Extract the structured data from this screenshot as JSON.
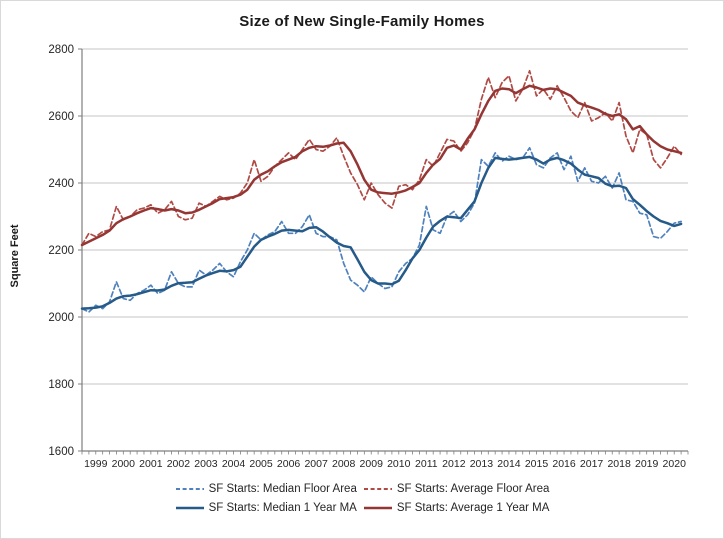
{
  "page": {
    "title": "Size of New Single-Family Homes"
  },
  "chart_data": {
    "type": "line",
    "title": "Size of New Single-Family Homes",
    "xlabel": "",
    "ylabel": "Square Feet",
    "ylim": [
      1600,
      2800
    ],
    "yticks": [
      1600,
      1800,
      2000,
      2200,
      2400,
      2600,
      2800
    ],
    "categories": [
      "1999",
      "2000",
      "2001",
      "2002",
      "2003",
      "2004",
      "2005",
      "2006",
      "2007",
      "2008",
      "2009",
      "2010",
      "2011",
      "2012",
      "2013",
      "2014",
      "2015",
      "2016",
      "2017",
      "2018",
      "2019",
      "2020"
    ],
    "x_unit": "quarter",
    "points_per_year": 4,
    "x_start_year": 1999,
    "grid": "horizontal",
    "legend_position": "bottom",
    "axis_color": "#7f7f7f",
    "grid_color": "#c6c6c6",
    "tick_label_color": "#262626",
    "series": [
      {
        "name": "SF Starts: Median Floor Area",
        "color": "#4f81bd",
        "style": "dashed",
        "width": 1.7,
        "values": [
          2025,
          2015,
          2035,
          2025,
          2045,
          2105,
          2055,
          2050,
          2070,
          2080,
          2095,
          2070,
          2080,
          2135,
          2100,
          2090,
          2090,
          2140,
          2125,
          2140,
          2160,
          2135,
          2120,
          2165,
          2200,
          2250,
          2230,
          2245,
          2255,
          2285,
          2250,
          2250,
          2270,
          2305,
          2250,
          2240,
          2240,
          2230,
          2160,
          2110,
          2095,
          2075,
          2120,
          2100,
          2085,
          2090,
          2135,
          2160,
          2175,
          2215,
          2330,
          2260,
          2250,
          2300,
          2315,
          2285,
          2305,
          2340,
          2470,
          2450,
          2490,
          2465,
          2480,
          2470,
          2475,
          2505,
          2455,
          2445,
          2475,
          2490,
          2440,
          2480,
          2405,
          2445,
          2405,
          2400,
          2420,
          2385,
          2430,
          2350,
          2345,
          2310,
          2305,
          2240,
          2235,
          2255,
          2280,
          2285
        ]
      },
      {
        "name": "SF Starts: Average Floor Area",
        "color": "#b04a45",
        "style": "dashed",
        "width": 1.7,
        "values": [
          2215,
          2250,
          2240,
          2255,
          2260,
          2330,
          2290,
          2300,
          2320,
          2325,
          2335,
          2310,
          2320,
          2345,
          2300,
          2290,
          2295,
          2340,
          2330,
          2345,
          2360,
          2350,
          2355,
          2370,
          2400,
          2470,
          2405,
          2420,
          2450,
          2470,
          2490,
          2470,
          2500,
          2530,
          2500,
          2495,
          2510,
          2535,
          2480,
          2430,
          2395,
          2350,
          2400,
          2365,
          2340,
          2325,
          2390,
          2395,
          2380,
          2410,
          2470,
          2450,
          2490,
          2530,
          2525,
          2495,
          2520,
          2560,
          2650,
          2715,
          2655,
          2700,
          2720,
          2645,
          2680,
          2735,
          2660,
          2680,
          2650,
          2690,
          2655,
          2615,
          2595,
          2640,
          2585,
          2595,
          2610,
          2585,
          2640,
          2540,
          2490,
          2560,
          2545,
          2470,
          2445,
          2475,
          2510,
          2485
        ]
      },
      {
        "name": "SF Starts: Median 1 Year MA",
        "color": "#265a88",
        "style": "solid",
        "width": 2.5,
        "values": [
          2025,
          2026,
          2028,
          2032,
          2042,
          2055,
          2062,
          2064,
          2068,
          2074,
          2080,
          2079,
          2082,
          2093,
          2101,
          2102,
          2104,
          2114,
          2124,
          2131,
          2138,
          2136,
          2140,
          2150,
          2180,
          2210,
          2230,
          2240,
          2248,
          2258,
          2260,
          2258,
          2256,
          2266,
          2268,
          2255,
          2238,
          2222,
          2212,
          2208,
          2172,
          2135,
          2110,
          2100,
          2100,
          2098,
          2108,
          2140,
          2175,
          2200,
          2237,
          2270,
          2287,
          2300,
          2298,
          2295,
          2320,
          2345,
          2400,
          2445,
          2475,
          2472,
          2470,
          2472,
          2475,
          2478,
          2470,
          2458,
          2470,
          2475,
          2468,
          2458,
          2440,
          2425,
          2420,
          2415,
          2398,
          2390,
          2392,
          2385,
          2352,
          2335,
          2316,
          2300,
          2287,
          2280,
          2272,
          2278
        ]
      },
      {
        "name": "SF Starts: Average 1 Year MA",
        "color": "#943634",
        "style": "solid",
        "width": 2.5,
        "values": [
          2215,
          2225,
          2235,
          2245,
          2258,
          2280,
          2292,
          2300,
          2310,
          2318,
          2325,
          2322,
          2318,
          2322,
          2318,
          2310,
          2312,
          2320,
          2330,
          2340,
          2352,
          2355,
          2358,
          2365,
          2380,
          2410,
          2425,
          2435,
          2450,
          2462,
          2470,
          2478,
          2495,
          2505,
          2510,
          2508,
          2512,
          2518,
          2520,
          2495,
          2455,
          2410,
          2380,
          2372,
          2370,
          2368,
          2372,
          2378,
          2388,
          2400,
          2430,
          2455,
          2472,
          2505,
          2512,
          2500,
          2532,
          2560,
          2605,
          2645,
          2675,
          2682,
          2680,
          2668,
          2680,
          2690,
          2685,
          2678,
          2682,
          2680,
          2670,
          2660,
          2640,
          2632,
          2625,
          2618,
          2606,
          2600,
          2605,
          2590,
          2560,
          2570,
          2545,
          2525,
          2510,
          2500,
          2495,
          2490
        ]
      }
    ]
  }
}
